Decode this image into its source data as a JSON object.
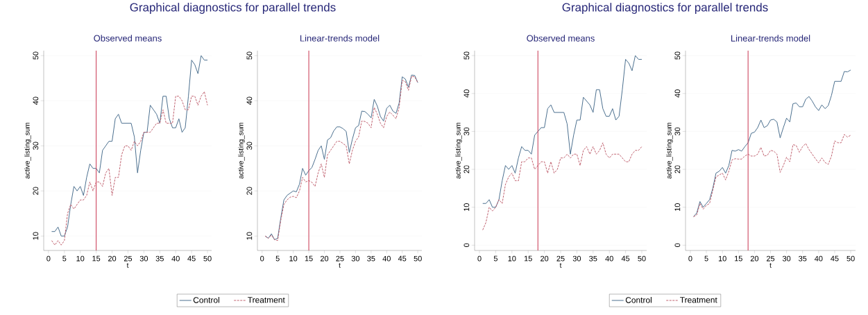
{
  "chart_data": [
    {
      "type": "line",
      "title": "Graphical diagnostics for parallel trends",
      "subtitle": "Observed means",
      "xlabel": "t",
      "ylabel": "active_listing_sum",
      "x": [
        1,
        2,
        3,
        4,
        5,
        6,
        7,
        8,
        9,
        10,
        11,
        12,
        13,
        14,
        15,
        16,
        17,
        18,
        19,
        20,
        21,
        22,
        23,
        24,
        25,
        26,
        27,
        28,
        29,
        30,
        31,
        32,
        33,
        34,
        35,
        36,
        37,
        38,
        39,
        40,
        41,
        42,
        43,
        44,
        45,
        46,
        47,
        48,
        49,
        50
      ],
      "xlim": [
        -1.5,
        51.3
      ],
      "ylim": [
        6.8,
        51.1
      ],
      "xticks": [
        0,
        5,
        10,
        15,
        20,
        25,
        30,
        35,
        40,
        45,
        50
      ],
      "yticks": [
        10,
        20,
        30,
        40,
        50
      ],
      "grid": "y",
      "legend": "bottom",
      "ref_lines": [
        {
          "axis": "x",
          "value": 15,
          "color": "#c8334f"
        }
      ],
      "series": [
        {
          "name": "Control",
          "color": "#4b6f8f",
          "line_style": "solid",
          "values": [
            11,
            11,
            12,
            10,
            10,
            12,
            17,
            21,
            20,
            21,
            19,
            23,
            26,
            25,
            25,
            24,
            29,
            30,
            31,
            31,
            36,
            37,
            35,
            35,
            35,
            35,
            32,
            24,
            29,
            33,
            33,
            39,
            38,
            37,
            35,
            41,
            41,
            36,
            34,
            34,
            36,
            33,
            34,
            41,
            49,
            48,
            46,
            50,
            49,
            49
          ]
        },
        {
          "name": "Treatment",
          "color": "#c0606e",
          "line_style": "dashed",
          "values": [
            9,
            8,
            9,
            8,
            9,
            15,
            17,
            16,
            17,
            18,
            18,
            19,
            22,
            20,
            22,
            22,
            21,
            24,
            25,
            19,
            23,
            23,
            28,
            30,
            30,
            29,
            31,
            30,
            31,
            33,
            33,
            33,
            34,
            35,
            35,
            38,
            35,
            35,
            35,
            41,
            41,
            40,
            38,
            38,
            41,
            41,
            39,
            41,
            42,
            39
          ]
        }
      ]
    },
    {
      "type": "line",
      "subtitle": "Linear-trends model",
      "xlabel": "t",
      "ylabel": "active_listing_sum",
      "x": [
        1,
        2,
        3,
        4,
        5,
        6,
        7,
        8,
        9,
        10,
        11,
        12,
        13,
        14,
        15,
        16,
        17,
        18,
        19,
        20,
        21,
        22,
        23,
        24,
        25,
        26,
        27,
        28,
        29,
        30,
        31,
        32,
        33,
        34,
        35,
        36,
        37,
        38,
        39,
        40,
        41,
        42,
        43,
        44,
        45,
        46,
        47,
        48,
        49,
        50
      ],
      "xlim": [
        -1.5,
        51.3
      ],
      "ylim": [
        6.8,
        51.1
      ],
      "xticks": [
        0,
        5,
        10,
        15,
        20,
        25,
        30,
        35,
        40,
        45,
        50
      ],
      "yticks": [
        10,
        20,
        30,
        40,
        50
      ],
      "grid": "y",
      "ref_lines": [
        {
          "axis": "x",
          "value": 15,
          "color": "#c8334f"
        }
      ],
      "series": [
        {
          "color": "#4b6f8f",
          "line_style": "solid",
          "values": [
            10,
            9.5,
            10.5,
            9.2,
            9.5,
            14,
            18,
            19,
            19.5,
            20,
            19.8,
            21.5,
            25,
            23.5,
            24.5,
            25.2,
            27,
            29,
            30,
            27,
            31.3,
            31.8,
            33.3,
            34.2,
            34.2,
            33.8,
            33.2,
            28.5,
            31.5,
            34,
            34.5,
            37.7,
            37.6,
            37,
            36.2,
            40.3,
            38.8,
            36.5,
            35.5,
            38.3,
            39,
            37.7,
            37.2,
            39.5,
            45.3,
            44.8,
            43,
            45.7,
            45.6,
            44
          ]
        },
        {
          "color": "#c0606e",
          "line_style": "dashed",
          "values": [
            10,
            9.5,
            10.2,
            9.2,
            9,
            13.5,
            17,
            18,
            18.6,
            18.8,
            18.5,
            20,
            23,
            22,
            22.3,
            21.9,
            21,
            24,
            26,
            23,
            28,
            29,
            30,
            31,
            31,
            30.5,
            30,
            26,
            29,
            31,
            32,
            35.5,
            35.4,
            35,
            34,
            38.5,
            37,
            35,
            34,
            36.5,
            37.5,
            36.8,
            36,
            38.5,
            44.5,
            44.2,
            42.3,
            45.4,
            45.3,
            44
          ]
        }
      ]
    },
    {
      "type": "line",
      "title": "Graphical diagnostics for parallel trends",
      "subtitle": "Observed means",
      "xlabel": "t",
      "ylabel": "active_listing_sum",
      "x": [
        1,
        2,
        3,
        4,
        5,
        6,
        7,
        8,
        9,
        10,
        11,
        12,
        13,
        14,
        15,
        16,
        17,
        18,
        19,
        20,
        21,
        22,
        23,
        24,
        25,
        26,
        27,
        28,
        29,
        30,
        31,
        32,
        33,
        34,
        35,
        36,
        37,
        38,
        39,
        40,
        41,
        42,
        43,
        44,
        45,
        46,
        47,
        48,
        49,
        50
      ],
      "xlim": [
        -1.5,
        51.5
      ],
      "ylim": [
        -1.4,
        51.3
      ],
      "xticks": [
        0,
        5,
        10,
        15,
        20,
        25,
        30,
        35,
        40,
        45,
        50
      ],
      "yticks": [
        0,
        10,
        20,
        30,
        40,
        50
      ],
      "grid": "y",
      "legend": "bottom",
      "ref_lines": [
        {
          "axis": "x",
          "value": 18,
          "color": "#c8334f"
        }
      ],
      "series": [
        {
          "name": "Control",
          "color": "#4b6f8f",
          "line_style": "solid",
          "values": [
            11,
            11,
            12,
            10,
            10,
            12,
            17,
            21,
            20,
            21,
            19,
            23,
            26,
            25,
            25,
            24,
            29,
            30,
            31,
            31,
            36,
            37,
            35,
            35,
            35,
            35,
            32,
            24,
            29,
            33,
            33,
            39,
            38,
            37,
            35,
            41,
            41,
            36,
            34,
            34,
            36,
            33,
            34,
            41,
            49,
            48,
            46,
            50,
            49,
            49
          ]
        },
        {
          "name": "Treatment",
          "color": "#c0606e",
          "line_style": "dashed",
          "values": [
            4,
            6,
            10,
            9,
            10,
            12,
            11,
            16,
            18,
            19,
            17,
            17,
            22,
            22,
            23,
            23,
            20,
            21,
            22,
            22,
            19,
            22,
            19,
            20,
            23,
            23,
            24,
            23,
            24,
            24,
            21,
            25,
            26,
            24,
            26,
            24,
            25,
            27,
            24,
            23,
            24,
            24,
            24,
            23,
            22,
            22,
            24,
            25,
            25,
            26
          ]
        }
      ]
    },
    {
      "type": "line",
      "subtitle": "Linear-trends model",
      "xlabel": "t",
      "ylabel": "active_listing_sum",
      "x": [
        1,
        2,
        3,
        4,
        5,
        6,
        7,
        8,
        9,
        10,
        11,
        12,
        13,
        14,
        15,
        16,
        17,
        18,
        19,
        20,
        21,
        22,
        23,
        24,
        25,
        26,
        27,
        28,
        29,
        30,
        31,
        32,
        33,
        34,
        35,
        36,
        37,
        38,
        39,
        40,
        41,
        42,
        43,
        44,
        45,
        46,
        47,
        48,
        49,
        50
      ],
      "xlim": [
        -1.5,
        51.5
      ],
      "ylim": [
        -1.4,
        51.3
      ],
      "xticks": [
        0,
        5,
        10,
        15,
        20,
        25,
        30,
        35,
        40,
        45,
        50
      ],
      "yticks": [
        0,
        10,
        20,
        30,
        40,
        50
      ],
      "grid": "y",
      "ref_lines": [
        {
          "axis": "x",
          "value": 18,
          "color": "#c8334f"
        }
      ],
      "series": [
        {
          "color": "#4b6f8f",
          "line_style": "solid",
          "values": [
            7.5,
            8.5,
            11.5,
            10,
            11,
            12,
            15,
            19,
            19.5,
            20.5,
            19,
            21,
            25,
            24.8,
            25.2,
            24.8,
            26,
            27,
            29.5,
            29.8,
            31,
            33,
            31,
            31.5,
            33,
            33.2,
            32.5,
            28.3,
            31,
            33.5,
            32.5,
            37.3,
            37.5,
            36.5,
            36.5,
            38.5,
            39.2,
            38,
            36.5,
            35.5,
            37,
            36,
            36.8,
            39.5,
            43.2,
            43.2,
            43.2,
            45.8,
            45.7,
            46.2
          ]
        },
        {
          "color": "#c0606e",
          "line_style": "dashed",
          "values": [
            7.5,
            8,
            11,
            9.5,
            10.5,
            11,
            14.5,
            18,
            18.5,
            19,
            17.2,
            19.5,
            22.5,
            22.8,
            22.7,
            22.7,
            23.5,
            24,
            23.5,
            23.5,
            24,
            25.8,
            23.5,
            23.7,
            25,
            24.8,
            24,
            19.2,
            21,
            23.2,
            22,
            26.5,
            26.3,
            24.5,
            26,
            26.8,
            25.2,
            24,
            22.8,
            21.7,
            23,
            21.8,
            21.3,
            23.5,
            27.5,
            27,
            27,
            29.2,
            28.5,
            29
          ]
        }
      ]
    }
  ]
}
